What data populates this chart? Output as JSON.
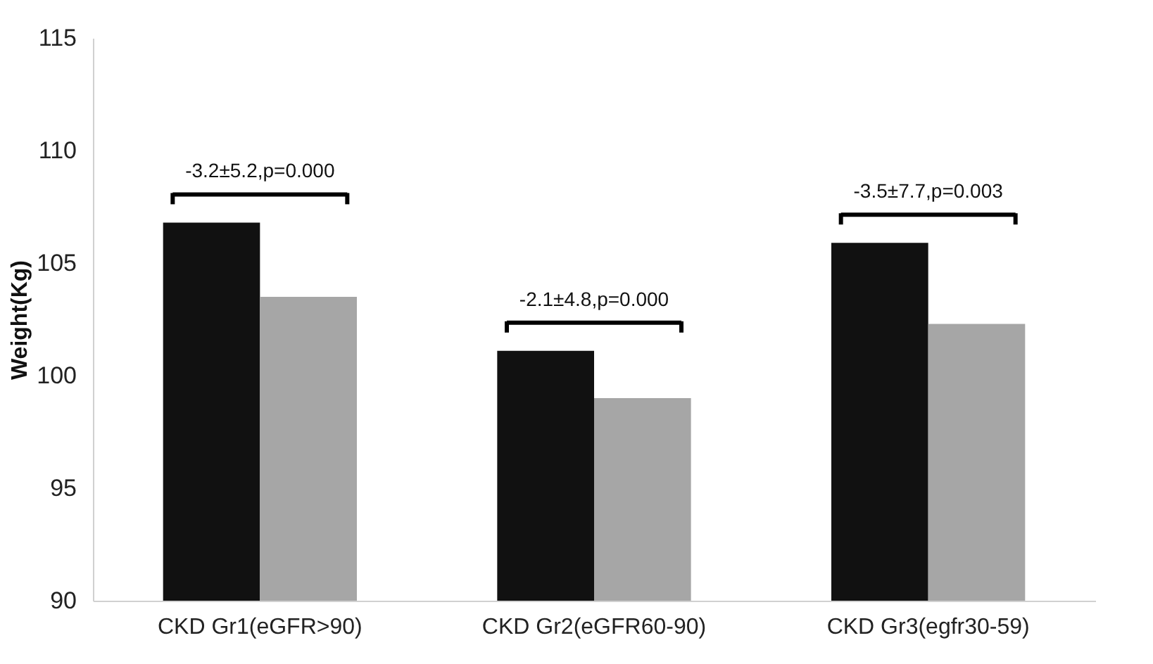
{
  "chart_data": {
    "type": "bar",
    "ylabel": "Weight(Kg)",
    "categories": [
      "CKD Gr1(eGFR>90)",
      "CKD Gr2(eGFR60-90)",
      "CKD Gr3(egfr30-59)"
    ],
    "series": [
      {
        "color": "#111111",
        "values": [
          106.8,
          101.1,
          105.9
        ]
      },
      {
        "color": "#a6a6a6",
        "values": [
          103.5,
          99.0,
          102.3
        ]
      }
    ],
    "ylim": [
      90,
      115
    ],
    "yticks": [
      90,
      95,
      100,
      105,
      110,
      115
    ],
    "grid": false,
    "legend": false,
    "annotations": [
      "-3.2±5.2,p=0.000",
      "-2.1±4.8,p=0.000",
      "-3.5±7.7,p=0.003"
    ]
  }
}
